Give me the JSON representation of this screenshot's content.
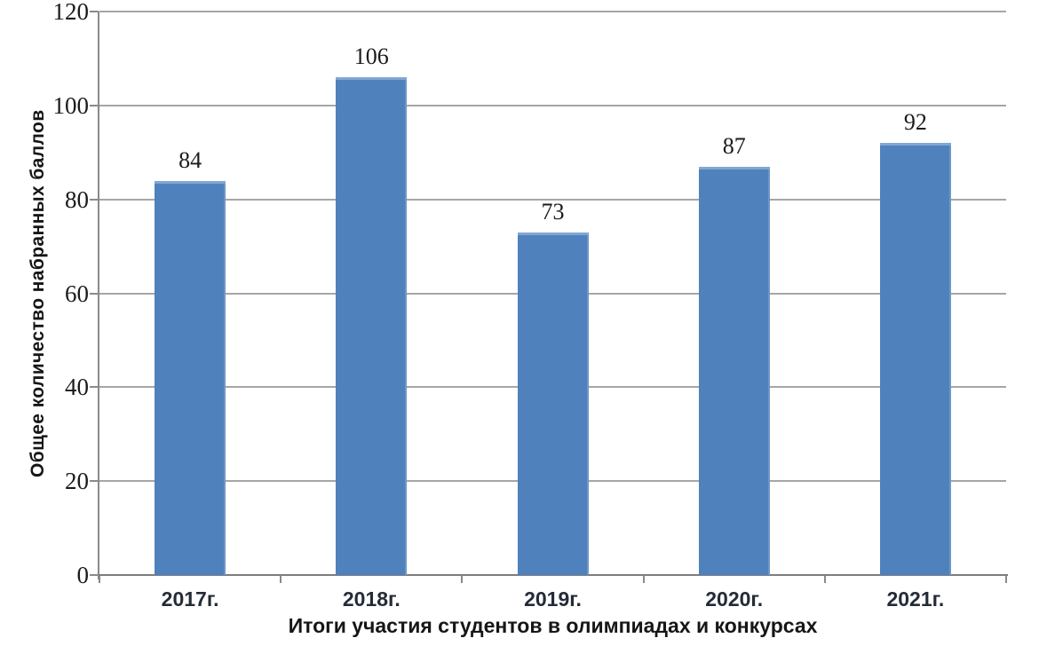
{
  "chart_data": {
    "type": "bar",
    "categories": [
      "2017г.",
      "2018г.",
      "2019г.",
      "2020г.",
      "2021г."
    ],
    "values": [
      84,
      106,
      73,
      87,
      92
    ],
    "title": "",
    "xlabel": "Итоги участия студентов в олимпиадах и конкурсах",
    "ylabel": "Общее количество набранных баллов",
    "ylim": [
      0,
      120
    ],
    "yticks": [
      0,
      20,
      40,
      60,
      80,
      100,
      120
    ],
    "grid": true,
    "legend": false,
    "data_labels_shown": true,
    "colors": {
      "bar": "#4f81bd",
      "bar_highlight": "#82a7d3",
      "gridline": "#a6a6a6",
      "axis": "#8a8a8a",
      "tick_text": "#1b1b1b",
      "category_text": "#242b38",
      "title_text": "#161616"
    }
  }
}
